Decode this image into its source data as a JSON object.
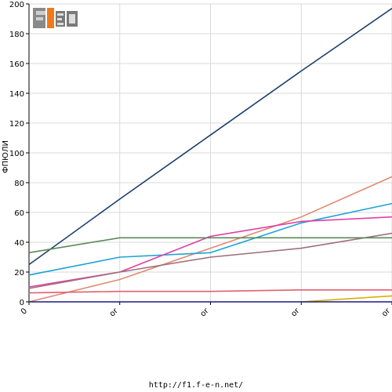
{
  "chart_data": {
    "type": "line",
    "ylabel": "ФПЮЛИ",
    "ylim": [
      0,
      200
    ],
    "yticks": [
      0,
      20,
      40,
      60,
      80,
      100,
      120,
      140,
      160,
      180,
      200
    ],
    "categories": [
      "0",
      "or",
      "or",
      "or",
      "or"
    ],
    "grid": true,
    "series": [
      {
        "color": "#1b3f6b",
        "values": [
          25,
          69,
          112,
          155,
          197
        ]
      },
      {
        "color": "#e08a70",
        "values": [
          0,
          15,
          36,
          57,
          84
        ]
      },
      {
        "color": "#1aa3d6",
        "values": [
          18,
          30,
          33,
          53,
          66
        ]
      },
      {
        "color": "#e040a8",
        "values": [
          10,
          20,
          44,
          54,
          57
        ]
      },
      {
        "color": "#a0707a",
        "values": [
          9,
          20,
          30,
          36,
          46
        ]
      },
      {
        "color": "#5a8a5a",
        "values": [
          33,
          43,
          43,
          43,
          43
        ]
      },
      {
        "color": "#e06070",
        "values": [
          6,
          7,
          7,
          8,
          8
        ]
      },
      {
        "color": "#d4b000",
        "values": [
          null,
          null,
          null,
          0,
          4
        ]
      },
      {
        "color": "#1a1a80",
        "values": [
          0,
          0,
          0,
          0,
          0
        ]
      }
    ]
  },
  "logo": {
    "text": "F1EN"
  },
  "footer": {
    "url": "http://f1.f-e-n.net/"
  }
}
